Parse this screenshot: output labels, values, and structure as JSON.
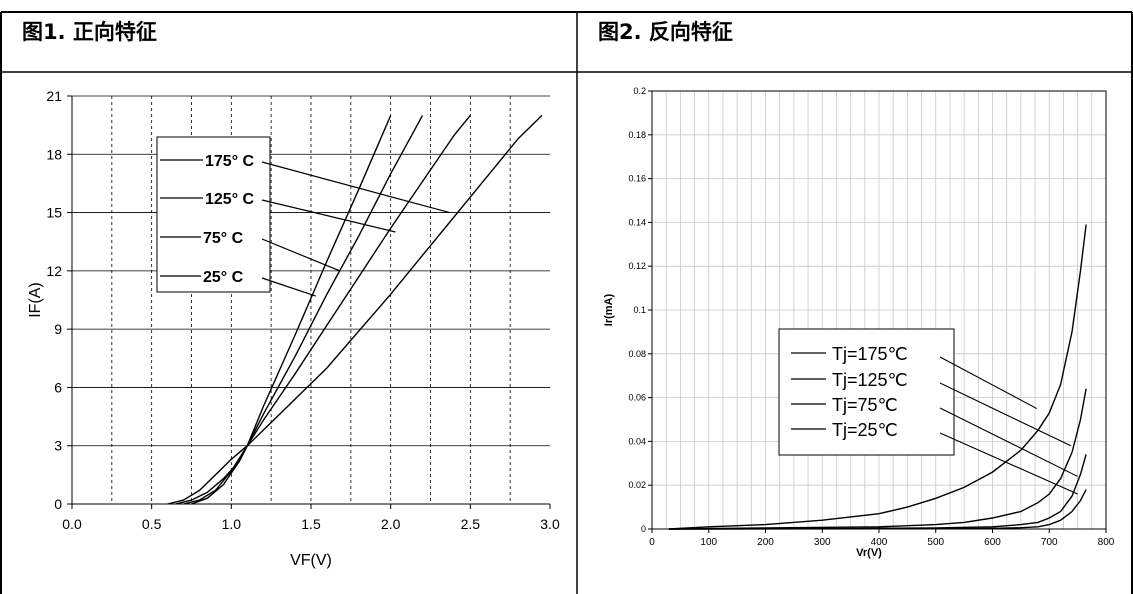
{
  "panels": [
    {
      "title": "图1. 正向特征"
    },
    {
      "title": "图2. 反向特征"
    }
  ],
  "chart_data": [
    {
      "type": "line",
      "xlabel": "VF(V)",
      "ylabel": "IF(A)",
      "xlim": [
        0,
        3.0
      ],
      "ylim": [
        0,
        21
      ],
      "xticks": [
        "0.0",
        "0.5",
        "1.0",
        "1.5",
        "2.0",
        "2.5",
        "3.0"
      ],
      "xtick_values": [
        0,
        0.5,
        1.0,
        1.5,
        2.0,
        2.5,
        3.0
      ],
      "yticks": [
        "0",
        "3",
        "6",
        "9",
        "12",
        "15",
        "18",
        "21"
      ],
      "ytick_values": [
        0,
        3,
        6,
        9,
        12,
        15,
        18,
        21
      ],
      "grid": "dashed vertical every 0.25 V, solid horizontal every 3 A",
      "legend_placement": "top-left",
      "series": [
        {
          "name": "175° C",
          "x": [
            0.6,
            0.7,
            0.8,
            0.9,
            1.0,
            1.1,
            1.2,
            1.4,
            1.6,
            1.8,
            2.0,
            2.2,
            2.4,
            2.6,
            2.8,
            2.95
          ],
          "y": [
            0,
            0.2,
            0.7,
            1.5,
            2.3,
            3.0,
            3.8,
            5.4,
            7.0,
            8.9,
            10.8,
            12.8,
            14.8,
            16.8,
            18.8,
            20.0
          ]
        },
        {
          "name": "125° C",
          "x": [
            0.65,
            0.75,
            0.85,
            0.95,
            1.05,
            1.1,
            1.2,
            1.4,
            1.6,
            1.8,
            2.0,
            2.2,
            2.4,
            2.5
          ],
          "y": [
            0,
            0.2,
            0.6,
            1.3,
            2.2,
            3.0,
            4.3,
            6.7,
            9.2,
            11.7,
            14.2,
            16.6,
            19.0,
            20.0
          ]
        },
        {
          "name": "75° C",
          "x": [
            0.7,
            0.8,
            0.9,
            1.0,
            1.1,
            1.2,
            1.4,
            1.6,
            1.8,
            2.0,
            2.2
          ],
          "y": [
            0,
            0.2,
            0.7,
            1.7,
            3.0,
            4.6,
            7.6,
            10.8,
            13.8,
            17.0,
            20.0
          ]
        },
        {
          "name": "25° C",
          "x": [
            0.75,
            0.85,
            0.95,
            1.05,
            1.1,
            1.2,
            1.4,
            1.6,
            1.8,
            2.0
          ],
          "y": [
            0,
            0.3,
            1.0,
            2.2,
            3.0,
            5.0,
            8.7,
            12.5,
            16.2,
            20.0
          ]
        }
      ],
      "legend_pointers": [
        {
          "name": "175° C",
          "to": [
            2.37,
            15.0
          ]
        },
        {
          "name": "125° C",
          "to": [
            2.03,
            14.0
          ]
        },
        {
          "name": "75° C",
          "to": [
            1.68,
            12.0
          ]
        },
        {
          "name": "25° C",
          "to": [
            1.53,
            10.7
          ]
        }
      ]
    },
    {
      "type": "line",
      "xlabel": "Vr(V)",
      "ylabel": "Ir(mA)",
      "xlim": [
        0,
        800
      ],
      "ylim": [
        0,
        0.2
      ],
      "xticks": [
        "0",
        "100",
        "200",
        "300",
        "400",
        "500",
        "600",
        "700",
        "800"
      ],
      "xtick_values": [
        0,
        100,
        200,
        300,
        400,
        500,
        600,
        700,
        800
      ],
      "yticks": [
        "0",
        "0.02",
        "0.04",
        "0.06",
        "0.08",
        "0.1",
        "0.12",
        "0.14",
        "0.16",
        "0.18",
        "0.2"
      ],
      "ytick_values": [
        0,
        0.02,
        0.04,
        0.06,
        0.08,
        0.1,
        0.12,
        0.14,
        0.16,
        0.18,
        0.2
      ],
      "grid": "solid grid, 25 V by 0.02 mA",
      "legend_placement": "center",
      "series": [
        {
          "name": "Tj=175℃",
          "x": [
            30,
            100,
            200,
            300,
            400,
            450,
            500,
            550,
            600,
            650,
            680,
            700,
            720,
            740,
            755,
            765
          ],
          "y": [
            0,
            0.001,
            0.002,
            0.004,
            0.007,
            0.01,
            0.014,
            0.019,
            0.026,
            0.036,
            0.045,
            0.053,
            0.066,
            0.09,
            0.118,
            0.139
          ]
        },
        {
          "name": "Tj=125℃",
          "x": [
            30,
            200,
            400,
            500,
            550,
            600,
            650,
            680,
            700,
            720,
            740,
            755,
            765
          ],
          "y": [
            0,
            0.0005,
            0.001,
            0.002,
            0.003,
            0.005,
            0.008,
            0.012,
            0.016,
            0.023,
            0.035,
            0.05,
            0.064
          ]
        },
        {
          "name": "Tj=75℃",
          "x": [
            30,
            300,
            500,
            600,
            650,
            680,
            700,
            720,
            740,
            755,
            765
          ],
          "y": [
            0,
            0.0002,
            0.0005,
            0.001,
            0.002,
            0.003,
            0.005,
            0.008,
            0.015,
            0.025,
            0.034
          ]
        },
        {
          "name": "Tj=25℃",
          "x": [
            30,
            400,
            600,
            650,
            680,
            700,
            720,
            740,
            755,
            765
          ],
          "y": [
            0,
            0.0001,
            0.0003,
            0.0006,
            0.001,
            0.002,
            0.004,
            0.008,
            0.013,
            0.018
          ]
        }
      ],
      "legend_pointers": [
        {
          "name": "Tj=175℃",
          "to": [
            678,
            0.055
          ]
        },
        {
          "name": "Tj=125℃",
          "to": [
            738,
            0.038
          ]
        },
        {
          "name": "Tj=75℃",
          "to": [
            750,
            0.024
          ]
        },
        {
          "name": "Tj=25℃",
          "to": [
            750,
            0.016
          ]
        }
      ]
    }
  ]
}
